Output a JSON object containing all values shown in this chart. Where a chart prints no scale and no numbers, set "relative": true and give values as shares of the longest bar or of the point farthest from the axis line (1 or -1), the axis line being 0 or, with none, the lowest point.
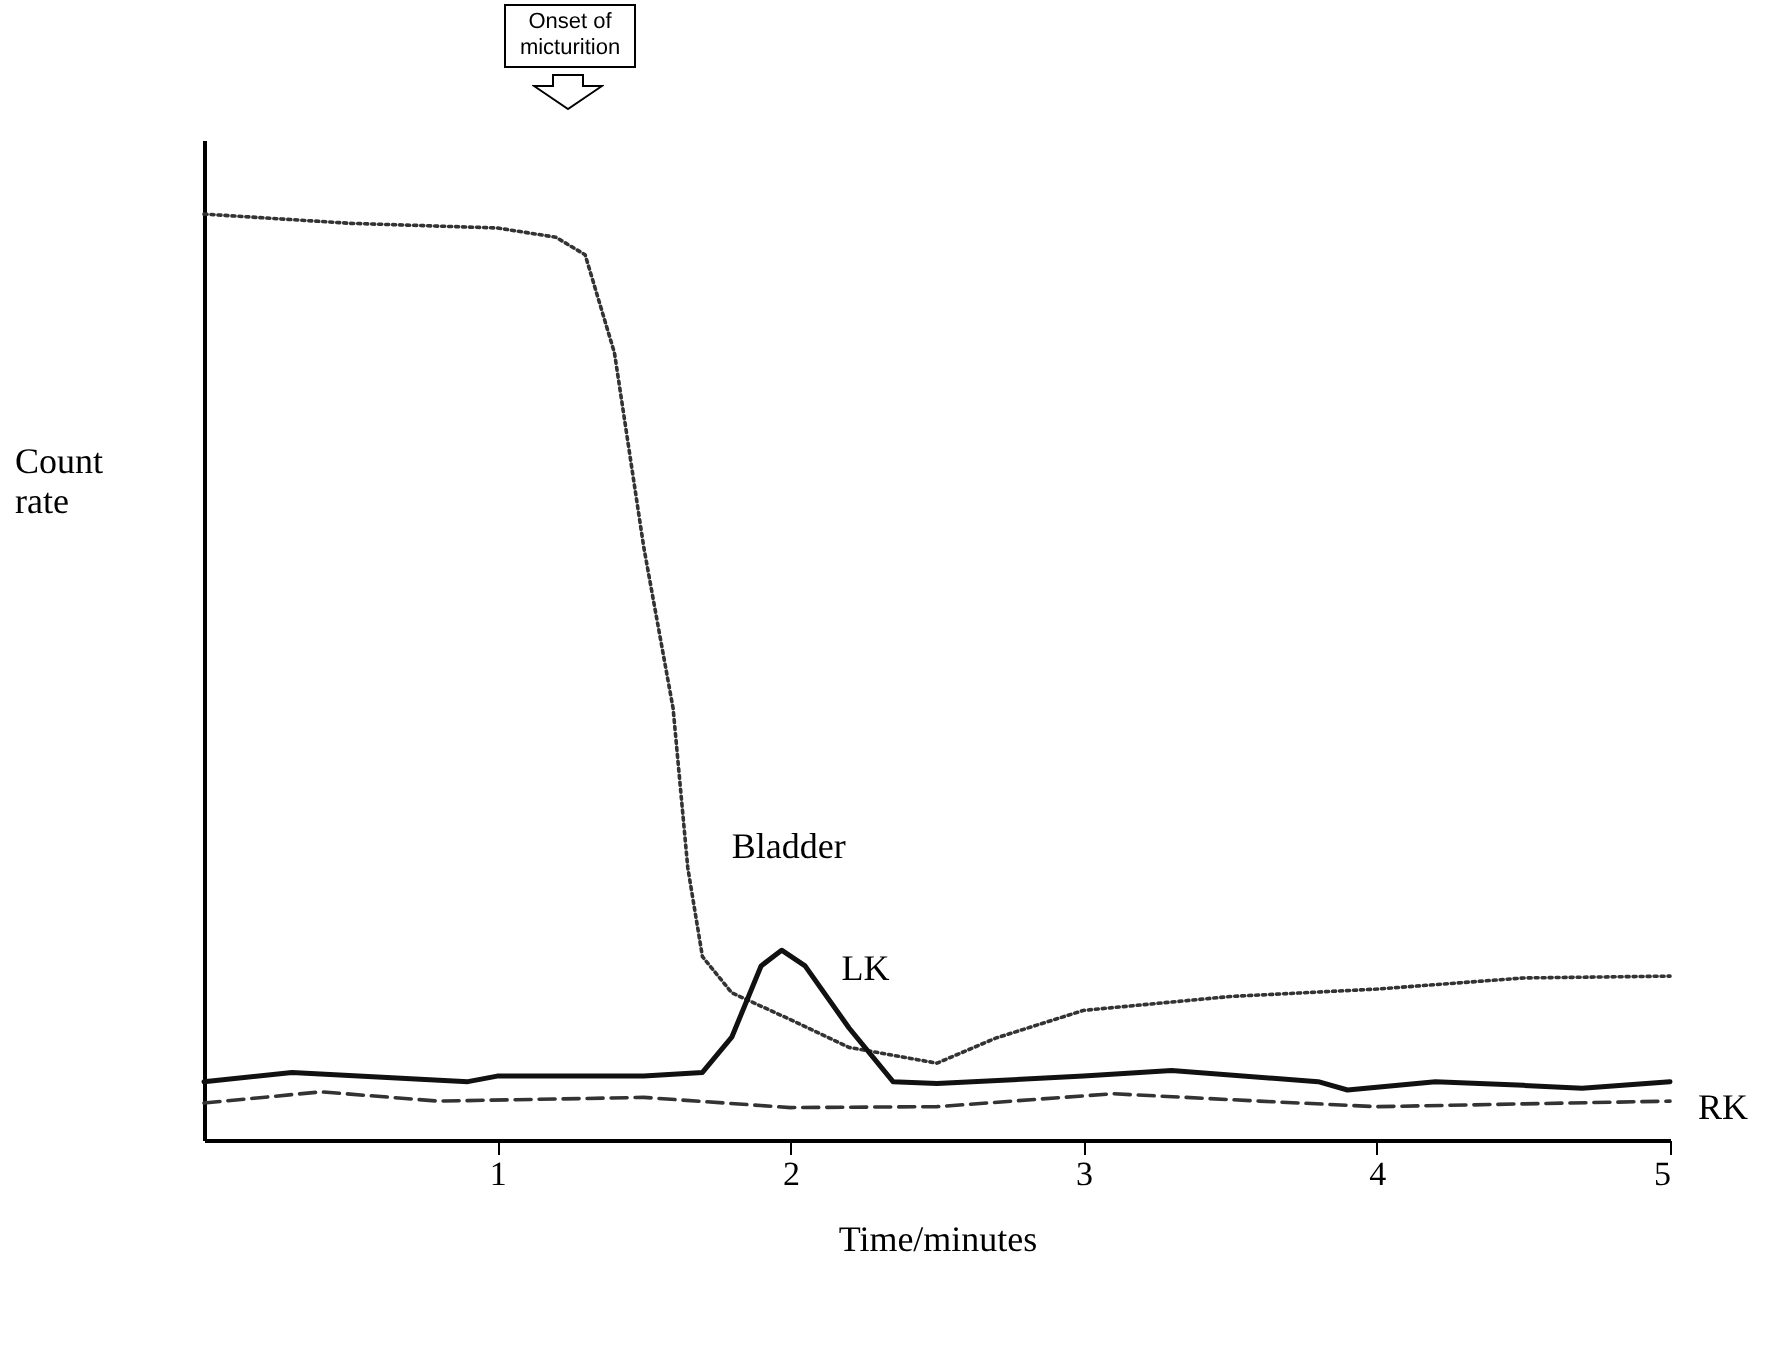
{
  "chart_data": {
    "type": "line",
    "relative": true,
    "xlabel": "Time/minutes",
    "ylabel": "Count rate",
    "xlim": [
      0,
      5
    ],
    "xticks": [
      1,
      2,
      3,
      4,
      5
    ],
    "grid": false,
    "marker": "none",
    "annotations": [
      "Onset of micturition"
    ],
    "series": [
      {
        "name": "Bladder",
        "color": "#333333",
        "line_style": "dotted",
        "x": [
          0,
          0.5,
          1,
          1.2,
          1.3,
          1.4,
          1.5,
          1.6,
          1.65,
          1.7,
          1.8,
          2,
          2.2,
          2.5,
          2.7,
          3,
          3.5,
          4,
          4.5,
          5
        ],
        "values": [
          1,
          0.99,
          0.985,
          0.975,
          0.956,
          0.85,
          0.64,
          0.466,
          0.294,
          0.198,
          0.159,
          0.13,
          0.1,
          0.083,
          0.11,
          0.14,
          0.155,
          0.163,
          0.175,
          0.177
        ]
      },
      {
        "name": "LK",
        "color": "#111111",
        "line_style": "solid",
        "x": [
          0,
          0.3,
          0.9,
          1,
          1.5,
          1.7,
          1.8,
          1.9,
          1.97,
          2.05,
          2.2,
          2.35,
          2.5,
          3,
          3.3,
          3.8,
          3.9,
          4.2,
          4.5,
          4.7,
          5
        ],
        "values": [
          0.063,
          0.073,
          0.063,
          0.069,
          0.069,
          0.073,
          0.111,
          0.188,
          0.205,
          0.188,
          0.121,
          0.063,
          0.061,
          0.069,
          0.075,
          0.063,
          0.054,
          0.063,
          0.059,
          0.056,
          0.063
        ]
      },
      {
        "name": "RK",
        "color": "#333333",
        "line_style": "dashed",
        "x": [
          0,
          0.4,
          0.8,
          1.5,
          2,
          2.5,
          3.1,
          3.6,
          4,
          5
        ],
        "values": [
          0.04,
          0.052,
          0.042,
          0.046,
          0.035,
          0.036,
          0.05,
          0.042,
          0.036,
          0.042
        ]
      }
    ]
  }
}
